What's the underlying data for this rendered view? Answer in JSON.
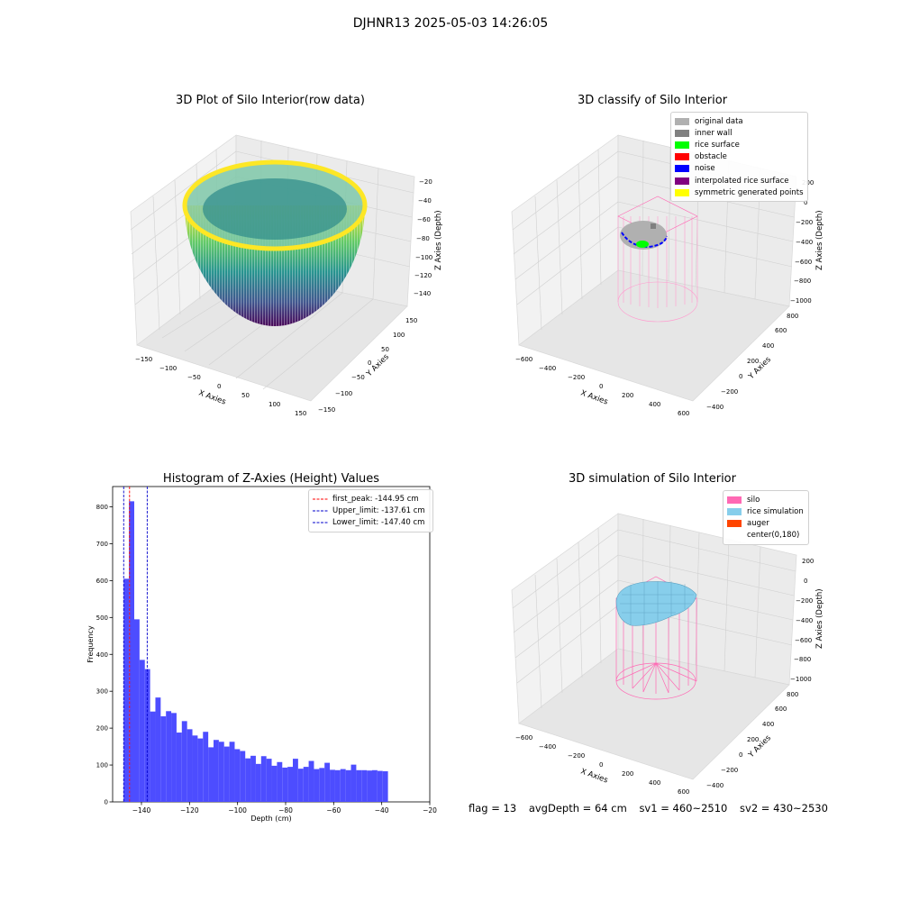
{
  "figure": {
    "title": "DJHNR13 2025-05-03 14:26:05"
  },
  "footer": {
    "flag": "flag = 13",
    "avg_depth": "avgDepth = 64 cm",
    "sv1": "sv1 = 460~2510",
    "sv2": "sv2 = 430~2530"
  },
  "chart_data": [
    {
      "type": "scatter",
      "panel": "3d-raw",
      "title": "3D Plot of Silo Interior(row data)",
      "xlabel": "X Axies",
      "ylabel": "Y Axies",
      "zlabel": "Z Axies (Depth)",
      "xticks": [
        "−150",
        "−100",
        "−50",
        "0",
        "50",
        "100",
        "150"
      ],
      "yticks": [
        "−150",
        "−100",
        "−50",
        "0",
        "50",
        "100",
        "150"
      ],
      "zticks": [
        "−20",
        "−40",
        "−60",
        "−80",
        "−100",
        "−120",
        "−140"
      ],
      "xlim": [
        -150,
        150
      ],
      "ylim": [
        -150,
        150
      ],
      "zlim": [
        -145,
        -20
      ],
      "colormap": "viridis"
    },
    {
      "type": "scatter",
      "panel": "3d-classify",
      "title": "3D classify of Silo Interior",
      "xlabel": "X Axies",
      "ylabel": "Y Axies",
      "zlabel": "Z Axies (Depth)",
      "xticks": [
        "−600",
        "−400",
        "−200",
        "0",
        "200",
        "400",
        "600"
      ],
      "yticks": [
        "−400",
        "−200",
        "0",
        "200",
        "400",
        "600",
        "800"
      ],
      "zticks": [
        "200",
        "0",
        "−200",
        "−400",
        "−600",
        "−800",
        "−1000"
      ],
      "legend": [
        {
          "label": "original data",
          "color": "#b0b0b0"
        },
        {
          "label": "inner wall",
          "color": "#808080"
        },
        {
          "label": "rice surface",
          "color": "#00ff00"
        },
        {
          "label": "obstacle",
          "color": "#ff0000"
        },
        {
          "label": "noise",
          "color": "#0000ff"
        },
        {
          "label": "interpolated rice surface",
          "color": "#800080"
        },
        {
          "label": "symmetric generated points",
          "color": "#ffff00"
        }
      ],
      "legend_position": "top-right"
    },
    {
      "type": "bar",
      "panel": "histogram",
      "title": "Histogram of Z-Axies (Height) Values",
      "xlabel": "Depth (cm)",
      "ylabel": "Frequency",
      "xlim": [
        -152,
        -20
      ],
      "ylim": [
        0,
        855
      ],
      "xticks": [
        -140,
        -120,
        -100,
        -80,
        -60,
        -40,
        -20
      ],
      "yticks": [
        0,
        100,
        200,
        300,
        400,
        500,
        600,
        700,
        800
      ],
      "bin_start": -147.4,
      "bin_width": 2.2,
      "values": [
        605,
        815,
        495,
        385,
        360,
        245,
        283,
        232,
        246,
        241,
        188,
        219,
        197,
        180,
        172,
        190,
        148,
        168,
        163,
        150,
        163,
        143,
        138,
        118,
        125,
        103,
        124,
        117,
        98,
        108,
        93,
        95,
        117,
        90,
        95,
        111,
        89,
        92,
        106,
        87,
        86,
        89,
        86,
        101,
        86,
        86,
        85,
        86,
        84,
        83
      ],
      "bar_color": "#4d4dff",
      "lines": [
        {
          "label": "first_peak: -144.95 cm",
          "x": -144.95,
          "color": "#ff0000"
        },
        {
          "label": "Upper_limit: -137.61 cm",
          "x": -137.61,
          "color": "#0000cc"
        },
        {
          "label": "Lower_limit: -147.40 cm",
          "x": -147.4,
          "color": "#0000cc"
        }
      ],
      "legend_position": "top-right"
    },
    {
      "type": "scatter",
      "panel": "3d-simulation",
      "title": "3D simulation of Silo Interior",
      "xlabel": "X Axies",
      "ylabel": "Y Axies",
      "zlabel": "Z Axies (Depth)",
      "xticks": [
        "−600",
        "−400",
        "−200",
        "0",
        "200",
        "400",
        "600"
      ],
      "yticks": [
        "−400",
        "−200",
        "0",
        "200",
        "400",
        "600",
        "800"
      ],
      "zticks": [
        "200",
        "0",
        "−200",
        "−400",
        "−600",
        "−800",
        "−1000"
      ],
      "legend": [
        {
          "label": "silo",
          "color": "#ff69b4"
        },
        {
          "label": "rice simulation",
          "color": "#87ceeb"
        },
        {
          "label": "auger",
          "color": "#ff4500"
        },
        {
          "label": "center(0,180)",
          "color": ""
        }
      ],
      "legend_position": "top-right"
    }
  ]
}
